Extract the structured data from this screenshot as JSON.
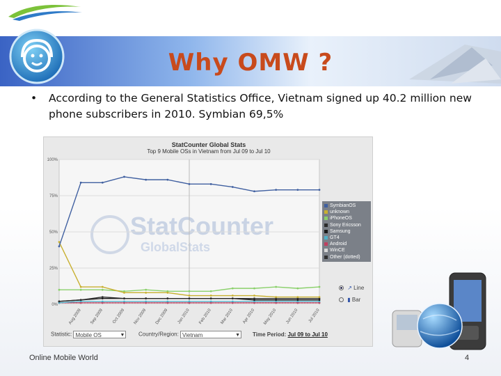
{
  "slide": {
    "title": "Why OMW ?",
    "bullet_char": "•",
    "bullet_text": "According to the General Statistics Office, Vietnam signed up 40.2 million new phone subscribers in 2010. Symbian 69,5%",
    "footer": "Online Mobile World",
    "page_number": "4"
  },
  "colors": {
    "title": "#c84a1c",
    "banner_left": "#3a63c4",
    "banner_right": "#cfdcef"
  },
  "statcounter": {
    "header": "StatCounter Global Stats",
    "subheader": "Top 9 Mobile OSs in Vietnam from Jul 09 to Jul 10",
    "watermark_main": "StatCounter",
    "watermark_sub": "GlobalStats",
    "radio_line": "Line",
    "radio_bar": "Bar",
    "statistic_label": "Statistic:",
    "statistic_value": "Mobile OS",
    "country_label": "Country/Region:",
    "country_value": "Vietnam",
    "period_label": "Time Period:",
    "period_value": "Jul 09 to Jul 10"
  },
  "chart_data": {
    "type": "line",
    "title": "StatCounter Global Stats",
    "subtitle": "Top 9 Mobile OSs in Vietnam from Jul 09 to Jul 10",
    "x": [
      "Jul 2009",
      "Aug 2009",
      "Sep 2009",
      "Oct 2009",
      "Nov 2009",
      "Dec 2009",
      "Jan 2010",
      "Feb 2010",
      "Mar 2010",
      "Apr 2010",
      "May 2010",
      "Jun 2010",
      "Jul 2010"
    ],
    "x_tick_labels": [
      "Aug 2009",
      "Sep 2009",
      "Oct 2009",
      "Nov 2009",
      "Dec 2009",
      "Jan 2010",
      "Feb 2010",
      "Mar 2010",
      "Apr 2010",
      "May 2010",
      "Jun 2010",
      "Jul 2010"
    ],
    "y_tick_labels": [
      "0%",
      "25%",
      "50%",
      "75%",
      "100%"
    ],
    "ylim": [
      0,
      100
    ],
    "grid": true,
    "legend_position": "right",
    "series": [
      {
        "name": "SymbianOS",
        "color": "#3f5fa0",
        "values": [
          40,
          84,
          84,
          88,
          86,
          86,
          83,
          83,
          81,
          78,
          79,
          79,
          79
        ]
      },
      {
        "name": "unknown",
        "color": "#c8b030",
        "values": [
          43,
          12,
          12,
          8,
          8,
          8,
          6,
          6,
          6,
          6,
          5,
          5,
          5
        ]
      },
      {
        "name": "iPhoneOS",
        "color": "#8ad06a",
        "values": [
          10,
          10,
          10,
          9,
          10,
          9,
          9,
          9,
          11,
          11,
          12,
          11,
          12
        ]
      },
      {
        "name": "Sony Ericsson",
        "color": "#2b2b2b",
        "values": [
          2,
          3,
          5,
          4,
          4,
          4,
          4,
          4,
          4,
          4,
          4,
          4,
          4
        ]
      },
      {
        "name": "Samsung",
        "color": "#1a1a1a",
        "values": [
          2,
          3,
          4,
          4,
          4,
          4,
          4,
          4,
          4,
          3,
          3,
          3,
          3
        ]
      },
      {
        "name": "GT4",
        "color": "#50b0c8",
        "values": [
          1,
          2,
          2,
          2,
          2,
          2,
          2,
          2,
          2,
          2,
          2,
          2,
          2
        ]
      },
      {
        "name": "Android",
        "color": "#c04060",
        "values": [
          1,
          1,
          1,
          1,
          1,
          1,
          1,
          1,
          1,
          1,
          1,
          1,
          1
        ]
      },
      {
        "name": "WinCE",
        "color": "#d8d8d8",
        "values": [
          1,
          1,
          1,
          1,
          1,
          1,
          1,
          1,
          1,
          1,
          1,
          1,
          1
        ]
      },
      {
        "name": "Other (dotted)",
        "color": "#303030",
        "values": [
          1,
          1,
          1,
          1,
          1,
          1,
          1,
          1,
          1,
          1,
          1,
          1,
          1
        ]
      }
    ]
  }
}
